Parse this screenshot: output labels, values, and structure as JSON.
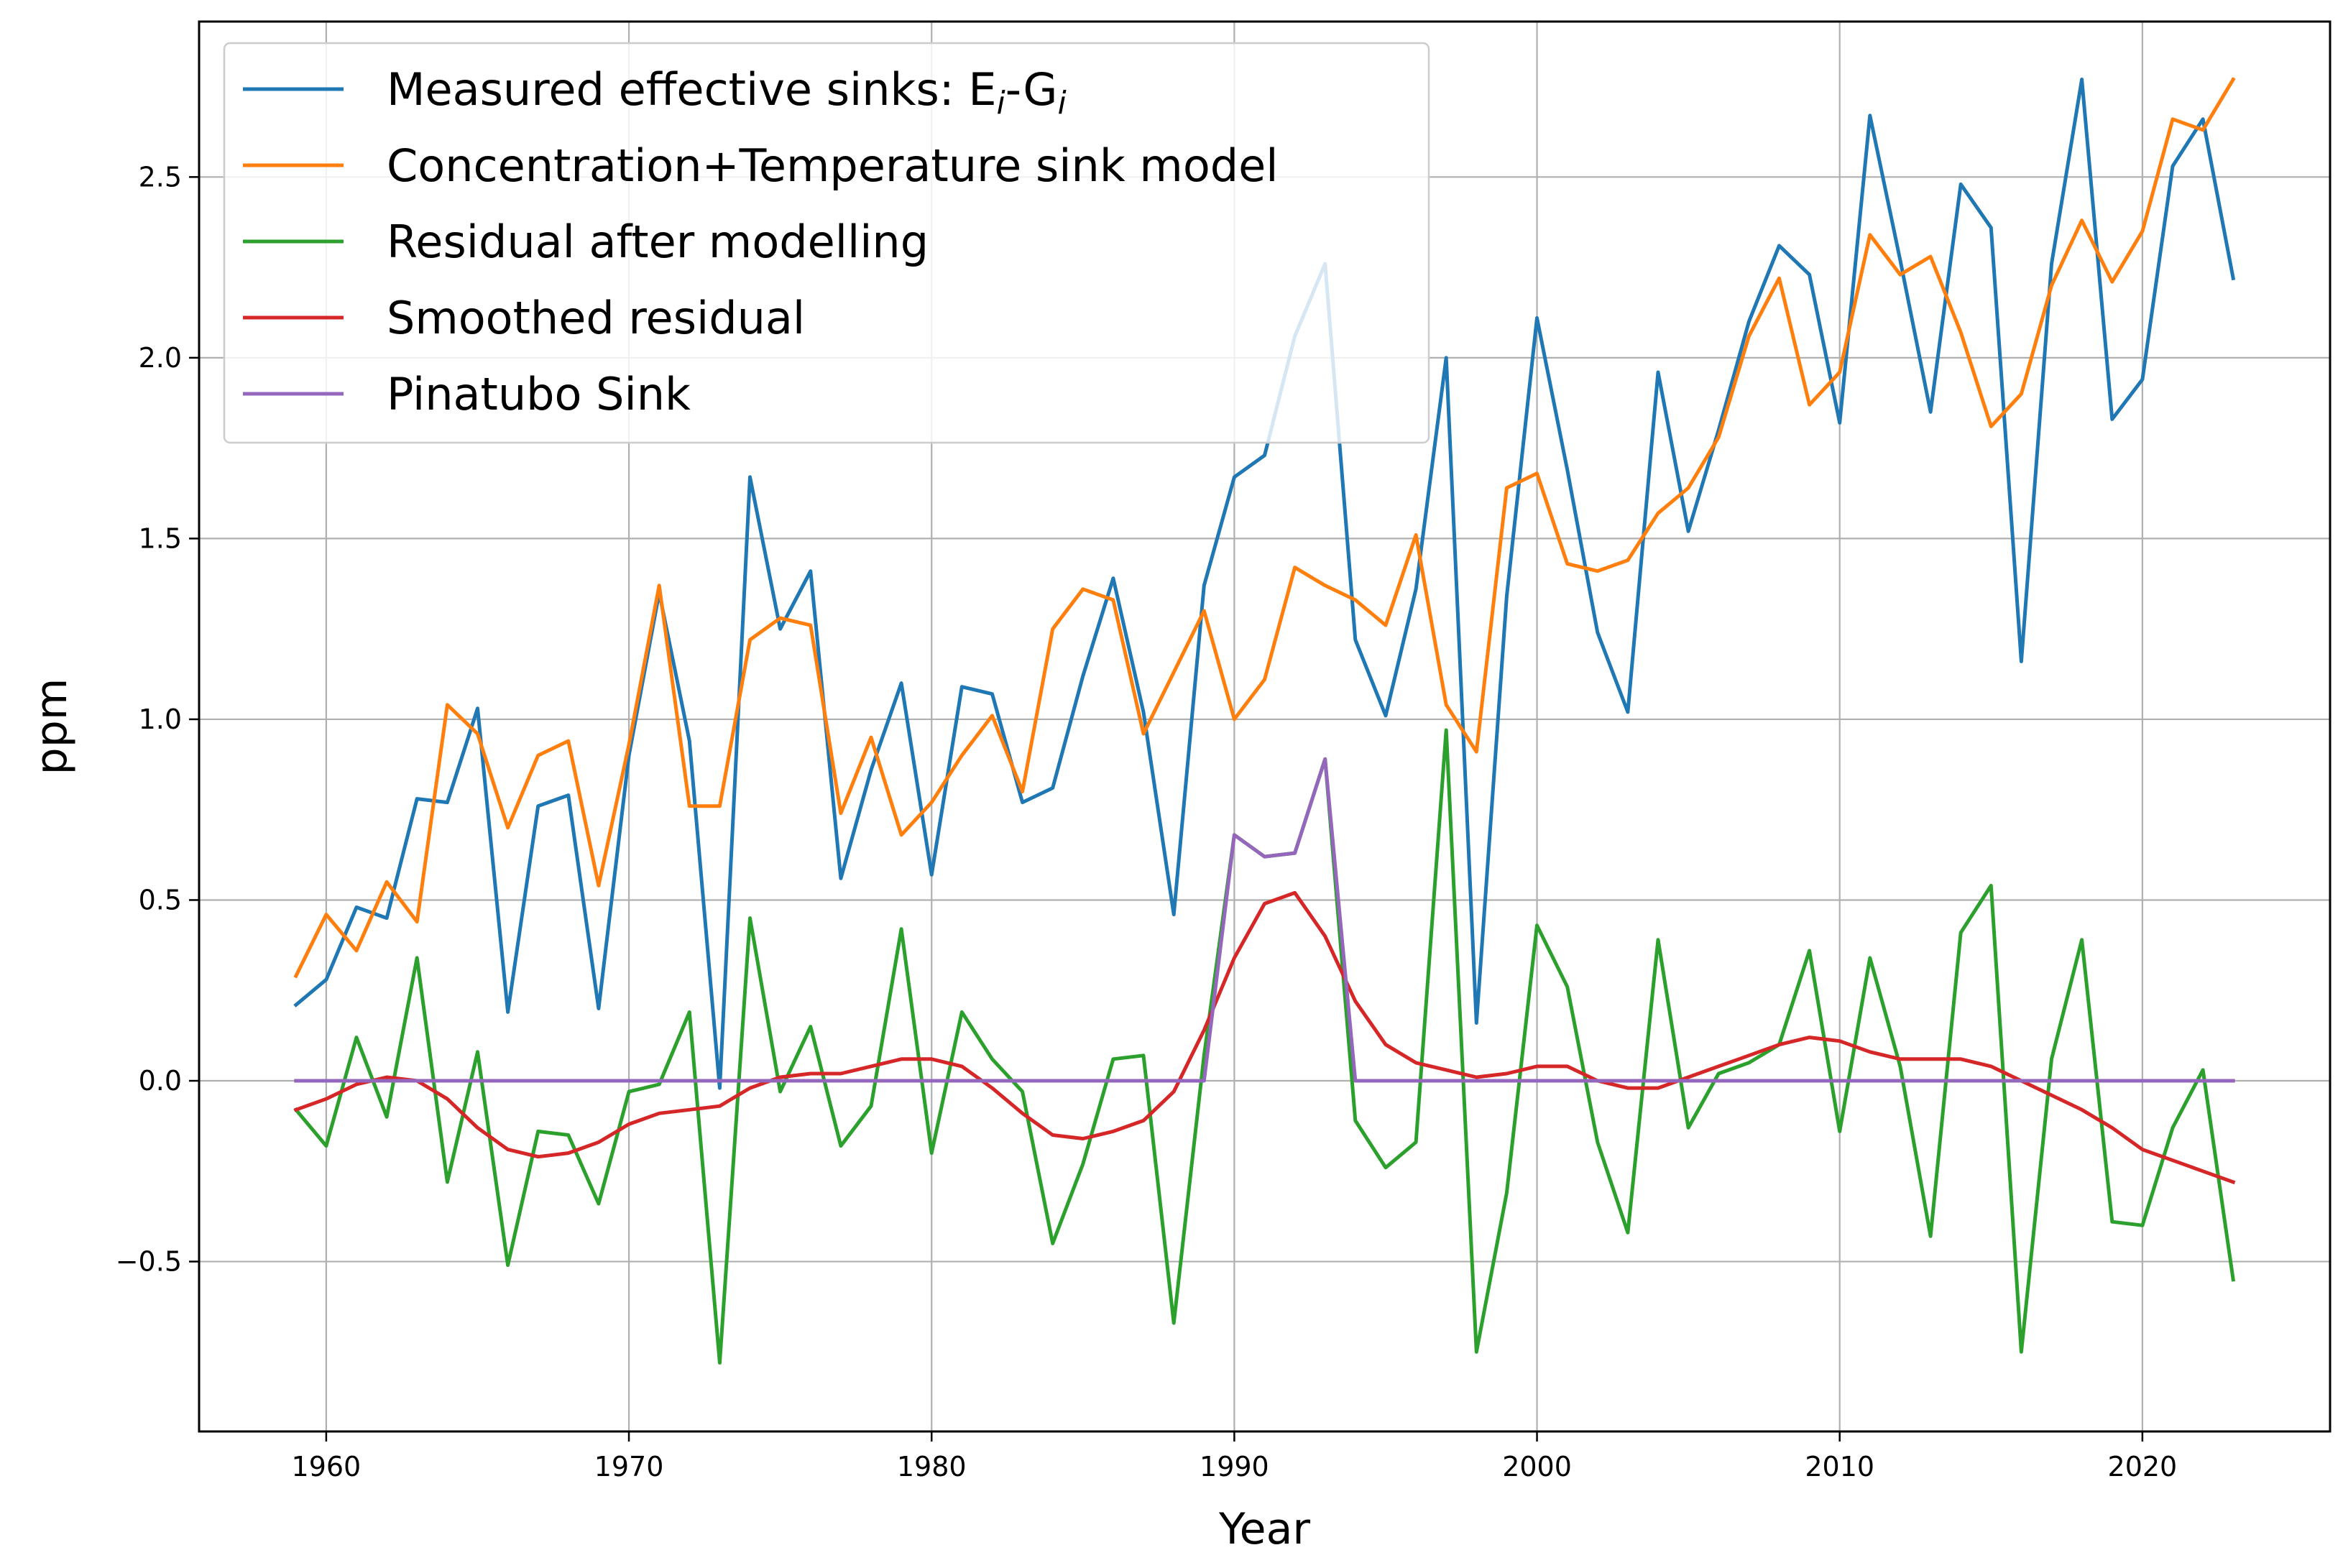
{
  "chart_data": {
    "type": "line",
    "title": "",
    "xlabel": "Year",
    "ylabel": "ppm",
    "xlim": [
      1955.8,
      2026.2
    ],
    "ylim": [
      -0.97,
      2.93
    ],
    "xticks": [
      1960,
      1970,
      1980,
      1990,
      2000,
      2010,
      2020
    ],
    "xtick_labels": [
      "1960",
      "1970",
      "1980",
      "1990",
      "2000",
      "2010",
      "2020"
    ],
    "yticks": [
      -0.5,
      0.0,
      0.5,
      1.0,
      1.5,
      2.0,
      2.5
    ],
    "ytick_labels": [
      "−0.5",
      "0.0",
      "0.5",
      "1.0",
      "1.5",
      "2.0",
      "2.5"
    ],
    "grid": true,
    "legend_position": "top-left",
    "x": [
      1959,
      1960,
      1961,
      1962,
      1963,
      1964,
      1965,
      1966,
      1967,
      1968,
      1969,
      1970,
      1971,
      1972,
      1973,
      1974,
      1975,
      1976,
      1977,
      1978,
      1979,
      1980,
      1981,
      1982,
      1983,
      1984,
      1985,
      1986,
      1987,
      1988,
      1989,
      1990,
      1991,
      1992,
      1993,
      1994,
      1995,
      1996,
      1997,
      1998,
      1999,
      2000,
      2001,
      2002,
      2003,
      2004,
      2005,
      2006,
      2007,
      2008,
      2009,
      2010,
      2011,
      2012,
      2013,
      2014,
      2015,
      2016,
      2017,
      2018,
      2019,
      2020,
      2021,
      2022,
      2023
    ],
    "series": [
      {
        "name": "Measured effective sinks: E",
        "name_sub1": "i",
        "name_mid": "-G",
        "name_sub2": "i",
        "color": "#1f77b4",
        "values": [
          0.21,
          0.28,
          0.48,
          0.45,
          0.78,
          0.77,
          1.03,
          0.19,
          0.76,
          0.79,
          0.2,
          0.9,
          1.35,
          0.94,
          -0.02,
          1.67,
          1.25,
          1.41,
          0.56,
          0.86,
          1.1,
          0.57,
          1.09,
          1.07,
          0.77,
          0.81,
          1.12,
          1.39,
          1.02,
          0.46,
          1.37,
          1.67,
          1.73,
          2.06,
          2.26,
          1.22,
          1.01,
          1.36,
          2.0,
          0.16,
          1.34,
          2.11,
          1.69,
          1.24,
          1.02,
          1.96,
          1.52,
          1.8,
          2.1,
          2.31,
          2.23,
          1.82,
          2.67,
          2.27,
          1.85,
          2.48,
          2.36,
          1.16,
          2.26,
          2.77,
          1.83,
          1.94,
          2.53,
          2.66,
          2.22
        ]
      },
      {
        "name": "Concentration+Temperature sink model",
        "color": "#ff7f0e",
        "values": [
          0.29,
          0.46,
          0.36,
          0.55,
          0.44,
          1.04,
          0.96,
          0.7,
          0.9,
          0.94,
          0.54,
          0.93,
          1.37,
          0.76,
          0.76,
          1.22,
          1.28,
          1.26,
          0.74,
          0.95,
          0.68,
          0.77,
          0.9,
          1.01,
          0.8,
          1.25,
          1.36,
          1.33,
          0.96,
          1.13,
          1.3,
          1.0,
          1.11,
          1.42,
          1.37,
          1.33,
          1.26,
          1.51,
          1.04,
          0.91,
          1.64,
          1.68,
          1.43,
          1.41,
          1.44,
          1.57,
          1.64,
          1.78,
          2.06,
          2.22,
          1.87,
          1.96,
          2.34,
          2.23,
          2.28,
          2.07,
          1.81,
          1.9,
          2.2,
          2.38,
          2.21,
          2.35,
          2.66,
          2.63,
          2.77
        ]
      },
      {
        "name": "Residual after modelling",
        "color": "#2ca02c",
        "values": [
          -0.08,
          -0.18,
          0.12,
          -0.1,
          0.34,
          -0.28,
          0.08,
          -0.51,
          -0.14,
          -0.15,
          -0.34,
          -0.03,
          -0.01,
          0.19,
          -0.78,
          0.45,
          -0.03,
          0.15,
          -0.18,
          -0.07,
          0.42,
          -0.2,
          0.19,
          0.06,
          -0.03,
          -0.45,
          -0.23,
          0.06,
          0.07,
          -0.67,
          0.07,
          0.68,
          0.62,
          0.63,
          0.89,
          -0.11,
          -0.24,
          -0.17,
          0.97,
          -0.75,
          -0.31,
          0.43,
          0.26,
          -0.17,
          -0.42,
          0.39,
          -0.13,
          0.02,
          0.05,
          0.1,
          0.36,
          -0.14,
          0.34,
          0.04,
          -0.43,
          0.41,
          0.54,
          -0.75,
          0.06,
          0.39,
          -0.39,
          -0.4,
          -0.13,
          0.03,
          -0.55
        ]
      },
      {
        "name": "Smoothed residual",
        "color": "#d62728",
        "values": [
          -0.08,
          -0.05,
          -0.01,
          0.01,
          0.0,
          -0.05,
          -0.13,
          -0.19,
          -0.21,
          -0.2,
          -0.17,
          -0.12,
          -0.09,
          -0.08,
          -0.07,
          -0.02,
          0.01,
          0.02,
          0.02,
          0.04,
          0.06,
          0.06,
          0.04,
          -0.02,
          -0.09,
          -0.15,
          -0.16,
          -0.14,
          -0.11,
          -0.03,
          0.14,
          0.34,
          0.49,
          0.52,
          0.4,
          0.22,
          0.1,
          0.05,
          0.03,
          0.01,
          0.02,
          0.04,
          0.04,
          0.0,
          -0.02,
          -0.02,
          0.01,
          0.04,
          0.07,
          0.1,
          0.12,
          0.11,
          0.08,
          0.06,
          0.06,
          0.06,
          0.04,
          0.0,
          -0.04,
          -0.08,
          -0.13,
          -0.19,
          -0.22,
          -0.25,
          -0.28
        ]
      },
      {
        "name": "Pinatubo Sink",
        "color": "#9467bd",
        "values": [
          0,
          0,
          0,
          0,
          0,
          0,
          0,
          0,
          0,
          0,
          0,
          0,
          0,
          0,
          0,
          0,
          0,
          0,
          0,
          0,
          0,
          0,
          0,
          0,
          0,
          0,
          0,
          0,
          0,
          0,
          0,
          0.68,
          0.62,
          0.63,
          0.89,
          0,
          0,
          0,
          0,
          0,
          0,
          0,
          0,
          0,
          0,
          0,
          0,
          0,
          0,
          0,
          0,
          0,
          0,
          0,
          0,
          0,
          0,
          0,
          0,
          0,
          0,
          0,
          0,
          0,
          0
        ]
      }
    ]
  }
}
